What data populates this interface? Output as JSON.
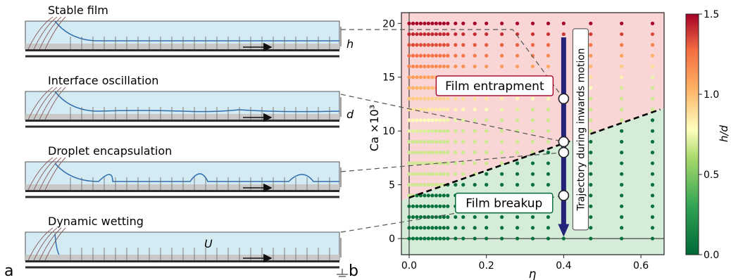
{
  "panel_a": {
    "letter": "a",
    "panels": [
      {
        "title": "Stable film",
        "dim_label": "h"
      },
      {
        "title": "Interface oscillation",
        "dim_label": "d"
      },
      {
        "title": "Droplet encapsulation",
        "dim_label": ""
      },
      {
        "title": "Dynamic wetting",
        "dim_label": "",
        "velocity_label": "U"
      }
    ]
  },
  "panel_b": {
    "letter": "b"
  },
  "colors": {
    "film_fill": "#d4ebf3",
    "interface": "#2f6fb0",
    "wall": "#c8c8c8",
    "bottom_bar": "#2b2b2b",
    "arrow_blue": "#23237a",
    "region_upper": "#f9d5d5",
    "region_lower": "#d5ecd8",
    "boundary": "#000000"
  },
  "chart_data": {
    "type": "scatter",
    "xlabel": "η",
    "ylabel": "Ca ×10³",
    "xlim": [
      -0.02,
      0.66
    ],
    "ylim": [
      -1.5,
      21
    ],
    "xticks": [
      0.0,
      0.2,
      0.4,
      0.6
    ],
    "yticks": [
      0,
      5,
      10,
      15,
      20
    ],
    "x_tick_labels": [
      "0.0",
      "0.2",
      "0.4",
      "0.6"
    ],
    "y_tick_labels": [
      "0",
      "5",
      "10",
      "15",
      "20"
    ],
    "eta_values": [
      0.0,
      0.01,
      0.02,
      0.03,
      0.04,
      0.05,
      0.06,
      0.07,
      0.08,
      0.09,
      0.1,
      0.12,
      0.14,
      0.17,
      0.2,
      0.24,
      0.28,
      0.32,
      0.36,
      0.4,
      0.47,
      0.55,
      0.63
    ],
    "ca_values": [
      0,
      1,
      2,
      3,
      4,
      5,
      6,
      7,
      8,
      9,
      10,
      11,
      12,
      13,
      14,
      15,
      16,
      17,
      18,
      19,
      20
    ],
    "boundary_line": {
      "x": [
        0.0,
        0.65
      ],
      "y": [
        3.8,
        12.0
      ],
      "style": "dashed"
    },
    "colorbar": {
      "label": "h/d",
      "min": 0.0,
      "max": 1.5,
      "ticks": [
        0.0,
        0.5,
        1.0,
        1.5
      ],
      "tick_labels": [
        "0.0",
        "0.5",
        "1.0",
        "1.5"
      ],
      "colormap": "RdYlGn_r"
    },
    "annotations": [
      {
        "text": "Film entrapment",
        "x": 0.07,
        "y": 14.2
      },
      {
        "text": "Film breakup",
        "x": 0.12,
        "y": 3.3
      }
    ],
    "trajectory": {
      "label": "Trajectory during inwards motion",
      "x": 0.4,
      "y_start": 18.7,
      "y_end": 0.3
    },
    "marked_points": [
      {
        "x": 0.4,
        "y": 13.0
      },
      {
        "x": 0.4,
        "y": 9.0
      },
      {
        "x": 0.4,
        "y": 8.0
      },
      {
        "x": 0.4,
        "y": 4.0
      }
    ],
    "connectors": [
      {
        "from_panel": 0,
        "to": {
          "x": 0.4,
          "y": 13.0
        }
      },
      {
        "from_panel": 1,
        "to": {
          "x": 0.4,
          "y": 9.0
        }
      },
      {
        "from_panel": 2,
        "to": {
          "x": 0.4,
          "y": 8.0
        }
      },
      {
        "from_panel": 3,
        "to": {
          "x": 0.4,
          "y": 4.0
        }
      }
    ]
  }
}
